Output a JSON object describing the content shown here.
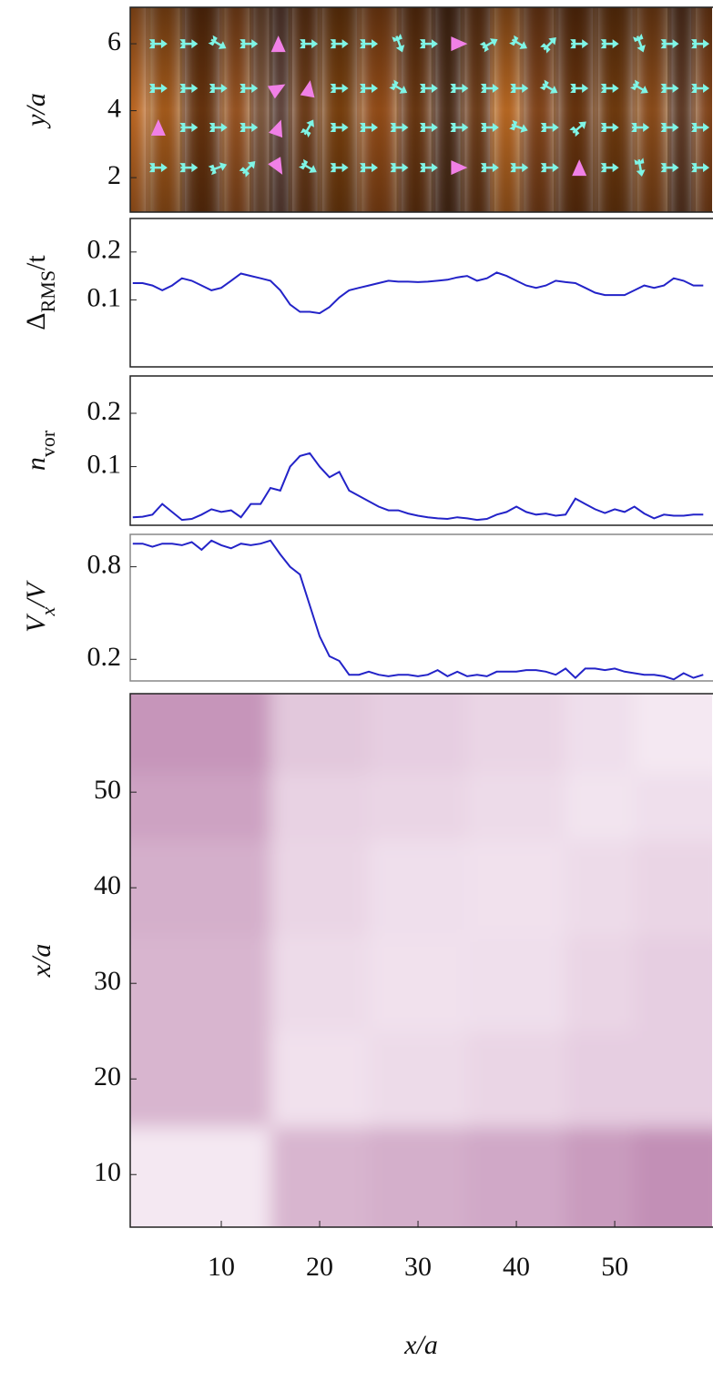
{
  "chart_data": [
    {
      "type": "quiver",
      "ylabel": "y/a",
      "xlim": [
        0.74,
        59.9
      ],
      "ylim": [
        0.97,
        7.09
      ],
      "yticks": [
        2,
        4,
        6
      ],
      "background": {
        "x": [
          1,
          4,
          8,
          12,
          14,
          16,
          18,
          22,
          26,
          30,
          33,
          36,
          39,
          42,
          46,
          50,
          54,
          57,
          59
        ],
        "values": [
          0.85,
          0.7,
          0.35,
          0.6,
          0.3,
          0.1,
          0.35,
          0.45,
          0.6,
          0.35,
          0.15,
          0.35,
          0.8,
          0.5,
          0.35,
          0.4,
          0.55,
          0.2,
          0.5
        ],
        "colormap": [
          "#2a1206",
          "#d0701e"
        ]
      },
      "arrows": {
        "x": [
          3.6,
          6.7,
          9.7,
          12.8,
          15.8,
          18.9,
          22,
          25,
          28.1,
          31.1,
          34.2,
          37.3,
          40.3,
          43.4,
          46.4,
          49.5,
          52.6,
          55.6,
          58.7
        ],
        "color": "#7ff5e6",
        "highlight_color": "#f080e6",
        "rows": [
          {
            "y": 6,
            "angles": [
              0,
              0,
              -30,
              0,
              90,
              0,
              0,
              0,
              -70,
              0,
              0,
              30,
              -30,
              45,
              0,
              0,
              -70,
              0,
              0
            ],
            "highlighted": [
              4,
              10
            ]
          },
          {
            "y": 4.67,
            "angles": [
              0,
              0,
              0,
              0,
              30,
              80,
              0,
              0,
              -30,
              0,
              0,
              0,
              0,
              -30,
              0,
              0,
              -30,
              0,
              0
            ],
            "highlighted": [
              4,
              5
            ]
          },
          {
            "y": 3.5,
            "angles": [
              90,
              0,
              0,
              0,
              70,
              60,
              0,
              0,
              0,
              0,
              0,
              0,
              -20,
              0,
              40,
              0,
              0,
              0,
              0
            ],
            "highlighted": [
              0,
              4
            ]
          },
          {
            "y": 2.3,
            "angles": [
              0,
              0,
              20,
              45,
              -60,
              -30,
              0,
              0,
              0,
              0,
              0,
              0,
              0,
              0,
              90,
              0,
              -80,
              0,
              0
            ],
            "highlighted": [
              4,
              10,
              14
            ]
          }
        ]
      }
    },
    {
      "type": "line",
      "ylabel": [
        "Δ",
        "RMS",
        "/t"
      ],
      "color": "#2323c8",
      "xlim": [
        0.74,
        59.9
      ],
      "ylim": [
        -0.04,
        0.27
      ],
      "yticks": [
        0.1,
        0.2
      ],
      "x": [
        1,
        2,
        3,
        4,
        5,
        6,
        7,
        8,
        9,
        10,
        11,
        12,
        13,
        14,
        15,
        16,
        17,
        18,
        19,
        20,
        21,
        22,
        23,
        24,
        25,
        26,
        27,
        28,
        29,
        30,
        31,
        32,
        33,
        34,
        35,
        36,
        37,
        38,
        39,
        40,
        41,
        42,
        43,
        44,
        45,
        46,
        47,
        48,
        49,
        50,
        51,
        52,
        53,
        54,
        55,
        56,
        57,
        58,
        59
      ],
      "values": [
        0.135,
        0.135,
        0.13,
        0.12,
        0.13,
        0.145,
        0.14,
        0.13,
        0.12,
        0.125,
        0.14,
        0.155,
        0.15,
        0.145,
        0.14,
        0.12,
        0.09,
        0.075,
        0.075,
        0.072,
        0.085,
        0.105,
        0.12,
        0.125,
        0.13,
        0.135,
        0.14,
        0.138,
        0.138,
        0.137,
        0.138,
        0.14,
        0.142,
        0.147,
        0.15,
        0.14,
        0.145,
        0.157,
        0.15,
        0.14,
        0.13,
        0.125,
        0.13,
        0.14,
        0.137,
        0.135,
        0.125,
        0.115,
        0.11,
        0.11,
        0.11,
        0.12,
        0.13,
        0.125,
        0.13,
        0.145,
        0.14,
        0.13,
        0.13
      ]
    },
    {
      "type": "line",
      "ylabel": [
        "n",
        "vor"
      ],
      "color": "#2323c8",
      "xlim": [
        0.74,
        59.9
      ],
      "ylim": [
        -0.01,
        0.27
      ],
      "yticks": [
        0.1,
        0.2
      ],
      "x": [
        1,
        2,
        3,
        4,
        5,
        6,
        7,
        8,
        9,
        10,
        11,
        12,
        13,
        14,
        15,
        16,
        17,
        18,
        19,
        20,
        21,
        22,
        23,
        24,
        25,
        26,
        27,
        28,
        29,
        30,
        31,
        32,
        33,
        34,
        35,
        36,
        37,
        38,
        39,
        40,
        41,
        42,
        43,
        44,
        45,
        46,
        47,
        48,
        49,
        50,
        51,
        52,
        53,
        54,
        55,
        56,
        57,
        58,
        59
      ],
      "values": [
        0.005,
        0.006,
        0.01,
        0.03,
        0.015,
        0.0,
        0.002,
        0.01,
        0.02,
        0.015,
        0.018,
        0.005,
        0.03,
        0.03,
        0.06,
        0.055,
        0.1,
        0.12,
        0.125,
        0.1,
        0.08,
        0.09,
        0.055,
        0.045,
        0.035,
        0.025,
        0.018,
        0.018,
        0.012,
        0.008,
        0.005,
        0.003,
        0.002,
        0.005,
        0.003,
        0.0,
        0.002,
        0.01,
        0.015,
        0.025,
        0.015,
        0.01,
        0.012,
        0.008,
        0.01,
        0.04,
        0.03,
        0.02,
        0.013,
        0.02,
        0.015,
        0.025,
        0.012,
        0.003,
        0.01,
        0.008,
        0.008,
        0.01,
        0.01
      ]
    },
    {
      "type": "line",
      "ylabel": [
        "V",
        "x",
        "/V"
      ],
      "color": "#2323c8",
      "xlim": [
        0.74,
        59.9
      ],
      "ylim": [
        0.06,
        1.01
      ],
      "yticks": [
        0.2,
        0.8
      ],
      "x": [
        1,
        2,
        3,
        4,
        5,
        6,
        7,
        8,
        9,
        10,
        11,
        12,
        13,
        14,
        15,
        16,
        17,
        18,
        19,
        20,
        21,
        22,
        23,
        24,
        25,
        26,
        27,
        28,
        29,
        30,
        31,
        32,
        33,
        34,
        35,
        36,
        37,
        38,
        39,
        40,
        41,
        42,
        43,
        44,
        45,
        46,
        47,
        48,
        49,
        50,
        51,
        52,
        53,
        54,
        55,
        56,
        57,
        58,
        59
      ],
      "values": [
        0.95,
        0.95,
        0.93,
        0.95,
        0.95,
        0.94,
        0.96,
        0.91,
        0.97,
        0.94,
        0.92,
        0.95,
        0.94,
        0.95,
        0.97,
        0.88,
        0.8,
        0.75,
        0.55,
        0.35,
        0.22,
        0.19,
        0.1,
        0.1,
        0.12,
        0.1,
        0.09,
        0.1,
        0.1,
        0.09,
        0.1,
        0.13,
        0.09,
        0.12,
        0.09,
        0.1,
        0.09,
        0.12,
        0.12,
        0.12,
        0.13,
        0.13,
        0.12,
        0.1,
        0.14,
        0.08,
        0.14,
        0.14,
        0.13,
        0.14,
        0.12,
        0.11,
        0.1,
        0.1,
        0.09,
        0.07,
        0.11,
        0.08,
        0.1
      ]
    },
    {
      "type": "heatmap",
      "xlabel": "x/a",
      "ylabel": "x/a",
      "xlim": [
        0.74,
        59.9
      ],
      "ylim": [
        4.5,
        60.3
      ],
      "xticks": [
        10,
        20,
        30,
        40,
        50
      ],
      "yticks": [
        10,
        20,
        30,
        40,
        50
      ],
      "x_edges": [
        0.74,
        15,
        25,
        35,
        45,
        52,
        59.9
      ],
      "y_edges": [
        4.5,
        15,
        25,
        35,
        45,
        52,
        60.3
      ],
      "z": [
        [
          0.05,
          0.45,
          0.5,
          0.55,
          0.65,
          0.75
        ],
        [
          0.45,
          0.1,
          0.15,
          0.2,
          0.25,
          0.25
        ],
        [
          0.45,
          0.15,
          0.1,
          0.12,
          0.2,
          0.25
        ],
        [
          0.5,
          0.2,
          0.12,
          0.1,
          0.15,
          0.2
        ],
        [
          0.6,
          0.22,
          0.2,
          0.15,
          0.08,
          0.12
        ],
        [
          0.7,
          0.3,
          0.25,
          0.2,
          0.12,
          0.05
        ]
      ],
      "colormap": [
        "#f8eef6",
        "#b06fa0"
      ]
    }
  ]
}
